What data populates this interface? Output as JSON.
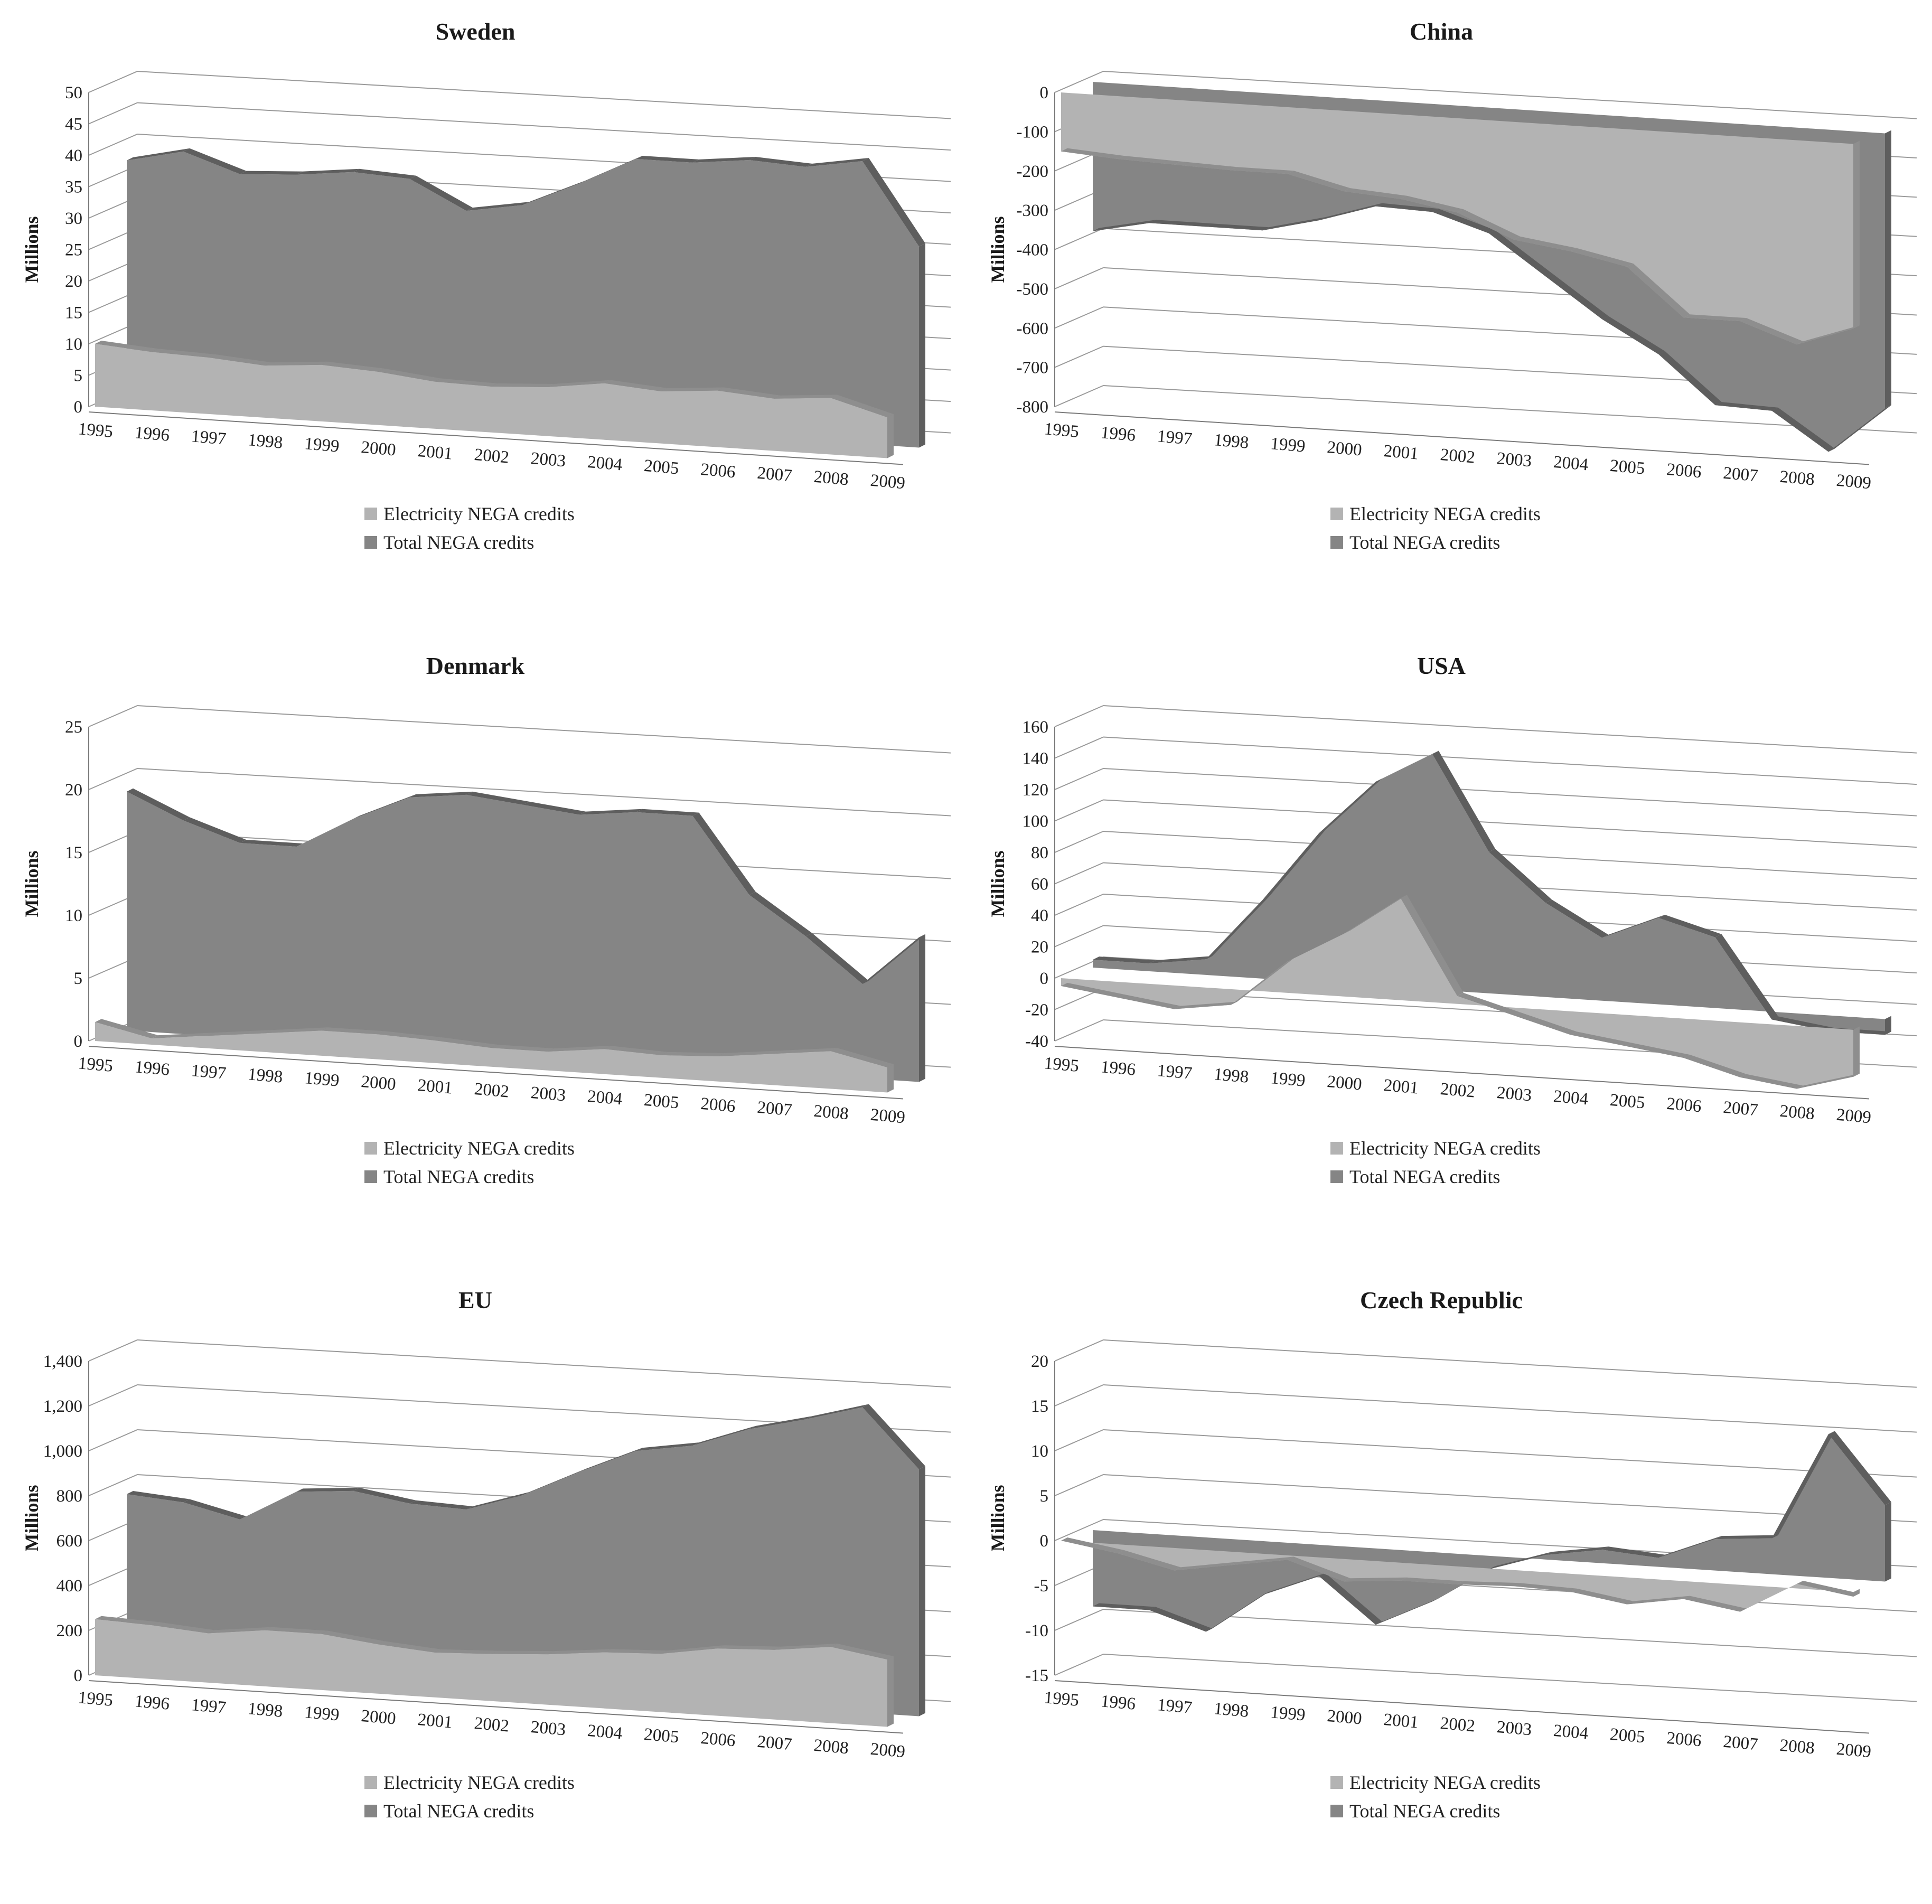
{
  "colors": {
    "electricity": "#b3b3b3",
    "electricity_edge": "#8e8e8e",
    "total": "#858585",
    "total_edge": "#5e5e5e",
    "gridline": "#9a9a9a",
    "axis": "#7a7a7a"
  },
  "chart_data": [
    {
      "type": "area",
      "title": "Sweden",
      "ylabel": "Millions",
      "ylim": [
        0,
        50
      ],
      "yticks": [
        "0",
        "5",
        "10",
        "15",
        "20",
        "25",
        "30",
        "35",
        "40",
        "45",
        "50"
      ],
      "categories": [
        "1995",
        "1996",
        "1997",
        "1998",
        "1999",
        "2000",
        "2001",
        "2002",
        "2003",
        "2004",
        "2005",
        "2006",
        "2007",
        "2008",
        "2009"
      ],
      "series": [
        {
          "name": "Electricity NEGA credits",
          "values": [
            10,
            9.3,
            9,
            8.3,
            9,
            8.5,
            7.5,
            7.3,
            7.8,
            9,
            8.3,
            9,
            8.3,
            9,
            6.5
          ]
        },
        {
          "name": "Total NEGA credits",
          "values": [
            37.5,
            39.5,
            36.5,
            37,
            38,
            37.5,
            33,
            34.5,
            38.5,
            43,
            43,
            44,
            43.5,
            45,
            32
          ]
        }
      ],
      "legend": [
        "Electricity NEGA credits",
        "Total NEGA credits"
      ]
    },
    {
      "type": "area",
      "title": "China",
      "ylabel": "Millions",
      "ylim": [
        -800,
        0
      ],
      "yticks": [
        "-800",
        "-700",
        "-600",
        "-500",
        "-400",
        "-300",
        "-200",
        "-100",
        "0"
      ],
      "categories": [
        "1995",
        "1996",
        "1997",
        "1998",
        "1999",
        "2000",
        "2001",
        "2002",
        "2003",
        "2004",
        "2005",
        "2006",
        "2007",
        "2008",
        "2009"
      ],
      "series": [
        {
          "name": "Electricity NEGA credits",
          "values": [
            -150,
            -160,
            -165,
            -170,
            -170,
            -205,
            -215,
            -240,
            -300,
            -320,
            -350,
            -470,
            -470,
            -520,
            -470
          ]
        },
        {
          "name": "Total NEGA credits",
          "values": [
            -380,
            -350,
            -350,
            -350,
            -315,
            -270,
            -275,
            -320,
            -420,
            -520,
            -600,
            -720,
            -725,
            -820,
            -700
          ]
        }
      ],
      "legend": [
        "Electricity NEGA credits",
        "Total NEGA credits"
      ]
    },
    {
      "type": "area",
      "title": "Denmark",
      "ylabel": "Millions",
      "ylim": [
        0,
        25
      ],
      "yticks": [
        "0",
        "5",
        "10",
        "15",
        "20",
        "25"
      ],
      "categories": [
        "1995",
        "1996",
        "1997",
        "1998",
        "1999",
        "2000",
        "2001",
        "2002",
        "2003",
        "2004",
        "2005",
        "2006",
        "2007",
        "2008",
        "2009"
      ],
      "series": [
        {
          "name": "Electricity NEGA credits",
          "values": [
            1.5,
            0.5,
            1,
            1.5,
            2,
            2,
            1.8,
            1.5,
            1.5,
            2,
            1.8,
            2,
            2.5,
            3,
            2
          ]
        },
        {
          "name": "Total NEGA credits",
          "values": [
            19,
            17,
            15.5,
            15.5,
            18,
            20,
            20.5,
            20,
            19.5,
            20,
            20,
            14,
            11,
            7.5,
            11.5
          ]
        }
      ],
      "legend": [
        "Electricity NEGA credits",
        "Total NEGA credits"
      ]
    },
    {
      "type": "area",
      "title": "USA",
      "ylabel": "Millions",
      "ylim": [
        -40,
        160
      ],
      "yticks": [
        "-40",
        "-20",
        "0",
        "20",
        "40",
        "60",
        "80",
        "100",
        "120",
        "140",
        "160"
      ],
      "categories": [
        "1995",
        "1996",
        "1997",
        "1998",
        "1999",
        "2000",
        "2001",
        "2002",
        "2003",
        "2004",
        "2005",
        "2006",
        "2007",
        "2008",
        "2009"
      ],
      "series": [
        {
          "name": "Electricity NEGA credits",
          "values": [
            -5,
            -10,
            -15,
            -10,
            20,
            40,
            65,
            5,
            -5,
            -15,
            -20,
            -25,
            -35,
            -40,
            -30
          ]
        },
        {
          "name": "Total NEGA credits",
          "values": [
            5,
            5,
            10,
            50,
            95,
            130,
            150,
            90,
            60,
            40,
            55,
            45,
            -5,
            -10,
            -10
          ]
        }
      ],
      "legend": [
        "Electricity NEGA credits",
        "Total NEGA credits"
      ]
    },
    {
      "type": "area",
      "title": "EU",
      "ylabel": "Millions",
      "ylim": [
        0,
        1400
      ],
      "yticks": [
        "0",
        "200",
        "400",
        "600",
        "800",
        "1,000",
        "1,200",
        "1,400"
      ],
      "categories": [
        "1995",
        "1996",
        "1997",
        "1998",
        "1999",
        "2000",
        "2001",
        "2002",
        "2003",
        "2004",
        "2005",
        "2006",
        "2007",
        "2008",
        "2009"
      ],
      "series": [
        {
          "name": "Electricity NEGA credits",
          "values": [
            250,
            240,
            220,
            250,
            250,
            220,
            200,
            210,
            225,
            250,
            260,
            300,
            310,
            340,
            300
          ]
        },
        {
          "name": "Total NEGA credits",
          "values": [
            760,
            740,
            680,
            820,
            840,
            800,
            790,
            870,
            990,
            1100,
            1140,
            1230,
            1290,
            1360,
            1100
          ]
        }
      ],
      "legend": [
        "Electricity NEGA credits",
        "Total NEGA credits"
      ]
    },
    {
      "type": "area",
      "title": "Czech Republic",
      "ylabel": "Millions",
      "ylim": [
        -15,
        20
      ],
      "yticks": [
        "-15",
        "-10",
        "-5",
        "0",
        "5",
        "10",
        "15",
        "20"
      ],
      "categories": [
        "1995",
        "1996",
        "1997",
        "1998",
        "1999",
        "2000",
        "2001",
        "2002",
        "2003",
        "2004",
        "2005",
        "2006",
        "2007",
        "2008",
        "2009"
      ],
      "series": [
        {
          "name": "Electricity NEGA credits",
          "values": [
            0,
            -1,
            -2.5,
            -1.5,
            -0.5,
            -2.5,
            -2,
            -2,
            -1.8,
            -2,
            -3,
            -2,
            -3,
            0.5,
            -0.5
          ]
        },
        {
          "name": "Total NEGA credits",
          "values": [
            -8.5,
            -8.5,
            -10.5,
            -6,
            -3.5,
            -8.5,
            -5.5,
            -1.5,
            0.5,
            1.5,
            1,
            3.5,
            4,
            16,
            8.5
          ]
        }
      ],
      "legend": [
        "Electricity NEGA credits",
        "Total NEGA credits"
      ]
    }
  ]
}
